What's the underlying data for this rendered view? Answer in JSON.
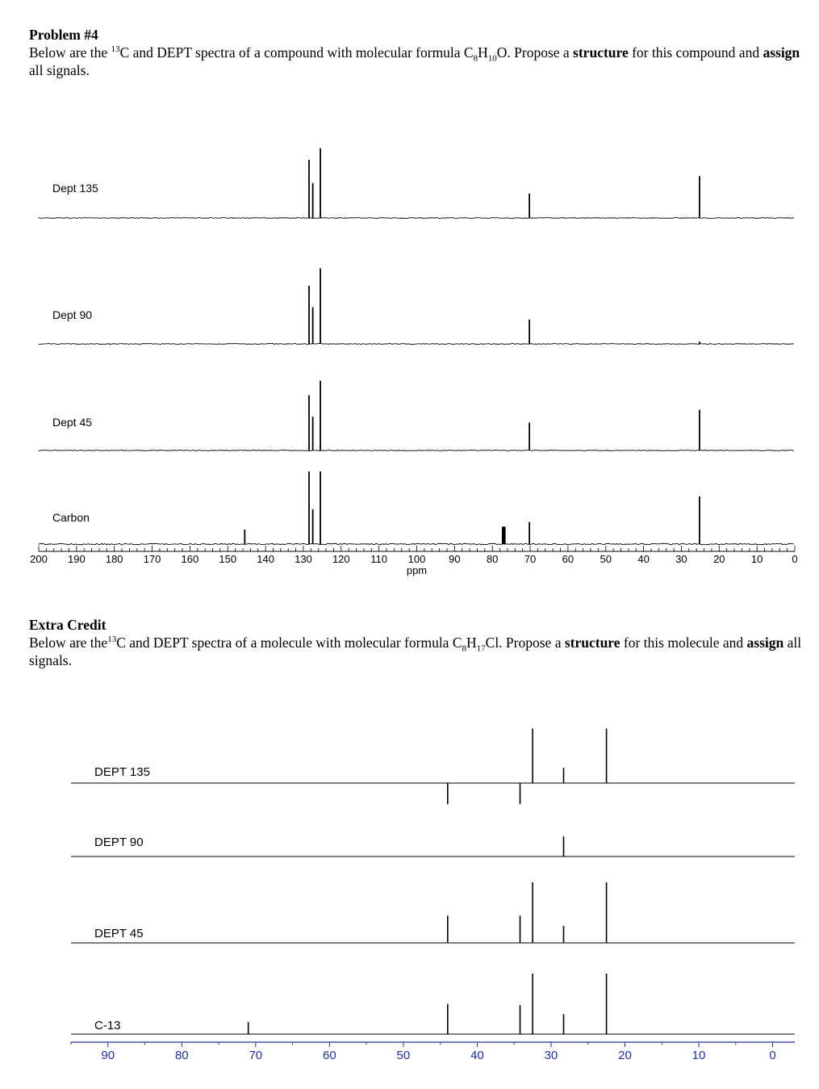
{
  "problem4": {
    "heading": "Problem #4",
    "text_a": "Below are the ",
    "sup": "13",
    "text_b": "C and DEPT spectra of a compound with molecular formula C",
    "sub1": "8",
    "text_c": "H",
    "sub2": "10",
    "text_d": "O.  Propose a ",
    "bold1": "structure",
    "text_e": " for this compound and ",
    "bold2": "assign",
    "text_f": " all signals."
  },
  "extra": {
    "heading": "Extra Credit",
    "text_a": "Below are the",
    "sup": "13",
    "text_b": "C and DEPT spectra of a molecule with molecular formula C",
    "sub1": "8",
    "text_c": "H",
    "sub2": "17",
    "text_d": "Cl.  Propose a ",
    "bold1": "structure",
    "text_e": " for this molecule and ",
    "bold2": "assign",
    "text_f": " all signals."
  },
  "chart_data": [
    {
      "type": "line",
      "xlabel": "ppm",
      "xlim": [
        200,
        0
      ],
      "x_ticks": [
        200,
        190,
        180,
        170,
        160,
        150,
        140,
        130,
        120,
        110,
        100,
        90,
        80,
        70,
        60,
        50,
        40,
        30,
        20,
        10,
        0
      ],
      "tick_labels": [
        "200",
        "190",
        "180",
        "170",
        "160",
        "150",
        "140",
        "130",
        "120",
        "110",
        "100",
        "90",
        "80",
        "70",
        "60",
        "50",
        "40",
        "30",
        "20",
        "10",
        "0"
      ],
      "series": [
        {
          "name": "Dept 135",
          "peaks": [
            {
              "x": 128.5,
              "y": 1.0
            },
            {
              "x": 127.5,
              "y": 0.6
            },
            {
              "x": 125.5,
              "y": 1.2
            },
            {
              "x": 70.2,
              "y": 0.42
            },
            {
              "x": 25.2,
              "y": 0.72
            }
          ]
        },
        {
          "name": "Dept 90",
          "peaks": [
            {
              "x": 128.5,
              "y": 1.0
            },
            {
              "x": 127.5,
              "y": 0.63
            },
            {
              "x": 125.5,
              "y": 1.3
            },
            {
              "x": 70.2,
              "y": 0.42
            },
            {
              "x": 25.2,
              "y": 0.04
            }
          ]
        },
        {
          "name": "Dept 45",
          "peaks": [
            {
              "x": 128.5,
              "y": 0.95
            },
            {
              "x": 127.5,
              "y": 0.58
            },
            {
              "x": 125.5,
              "y": 1.2
            },
            {
              "x": 70.2,
              "y": 0.48
            },
            {
              "x": 25.2,
              "y": 0.7
            }
          ]
        },
        {
          "name": "Carbon",
          "peaks": [
            {
              "x": 145.5,
              "y": 0.25
            },
            {
              "x": 128.5,
              "y": 1.25
            },
            {
              "x": 127.5,
              "y": 0.6
            },
            {
              "x": 125.5,
              "y": 1.25
            },
            {
              "x": 77.3,
              "y": 0.3
            },
            {
              "x": 77.0,
              "y": 0.3
            },
            {
              "x": 76.7,
              "y": 0.3
            },
            {
              "x": 70.2,
              "y": 0.38
            },
            {
              "x": 25.2,
              "y": 0.82
            }
          ]
        }
      ]
    },
    {
      "type": "line",
      "xlabel": "",
      "xlim": [
        95,
        -3
      ],
      "x_ticks": [
        90,
        80,
        70,
        60,
        50,
        40,
        30,
        20,
        10,
        0
      ],
      "tick_labels": [
        "90",
        "80",
        "70",
        "60",
        "50",
        "40",
        "30",
        "20",
        "10",
        "0"
      ],
      "series": [
        {
          "name": "DEPT 135",
          "peaks": [
            {
              "x": 44.0,
              "y": -0.35
            },
            {
              "x": 34.2,
              "y": -0.35
            },
            {
              "x": 32.5,
              "y": 0.9
            },
            {
              "x": 28.3,
              "y": 0.25
            },
            {
              "x": 22.5,
              "y": 0.9
            }
          ]
        },
        {
          "name": "DEPT 90",
          "peaks": [
            {
              "x": 28.3,
              "y": 0.33
            }
          ]
        },
        {
          "name": "DEPT 45",
          "peaks": [
            {
              "x": 44.0,
              "y": 0.45
            },
            {
              "x": 34.2,
              "y": 0.45
            },
            {
              "x": 32.5,
              "y": 1.0
            },
            {
              "x": 28.3,
              "y": 0.28
            },
            {
              "x": 22.5,
              "y": 1.0
            }
          ]
        },
        {
          "name": "C-13",
          "peaks": [
            {
              "x": 71.0,
              "y": 0.2
            },
            {
              "x": 44.0,
              "y": 0.5
            },
            {
              "x": 34.2,
              "y": 0.48
            },
            {
              "x": 32.5,
              "y": 1.0
            },
            {
              "x": 28.3,
              "y": 0.33
            },
            {
              "x": 22.5,
              "y": 1.0
            }
          ]
        }
      ]
    }
  ]
}
